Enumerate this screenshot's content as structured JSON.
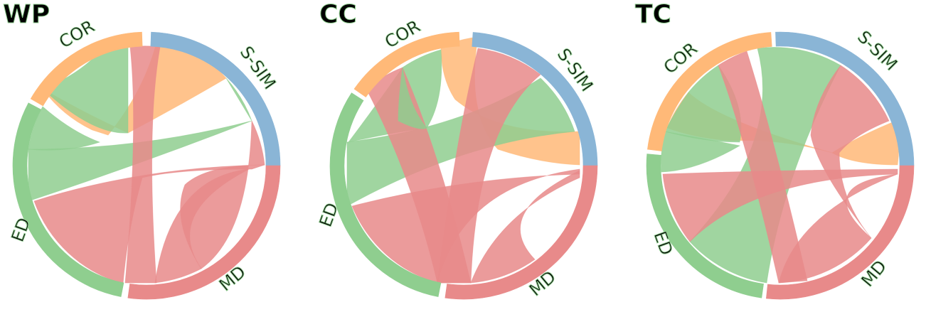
{
  "colors": {
    "S-SIM": "#8ab5d6",
    "MD": "#e88a8a",
    "ED": "#8fce8f",
    "COR": "#ffb978"
  },
  "chart_data": [
    {
      "type": "chord",
      "title": "WP",
      "groups": [
        {
          "name": "S-SIM",
          "label": "S-SIM",
          "start": 0,
          "end": 60,
          "color": "#8ab5d6"
        },
        {
          "name": "MD",
          "label": "MD",
          "start": 0,
          "end": 174,
          "color": "#e88a8a"
        },
        {
          "name": "ED",
          "label": "ED",
          "start": 176,
          "end": 280,
          "color": "#8fce8f"
        },
        {
          "name": "COR",
          "label": "COR",
          "start": 283,
          "end": 357,
          "color": "#ffb978"
        }
      ],
      "chords": [
        {
          "from": "S-SIM",
          "to": "MD",
          "color": "MD"
        },
        {
          "from": "S-SIM",
          "to": "ED",
          "color": "ED"
        },
        {
          "from": "S-SIM",
          "to": "COR",
          "color": "COR"
        },
        {
          "from": "MD",
          "to": "MD",
          "color": "MD"
        },
        {
          "from": "MD",
          "to": "ED",
          "color": "MD"
        },
        {
          "from": "MD",
          "to": "COR",
          "color": "MD"
        },
        {
          "from": "ED",
          "to": "COR",
          "color": "ED"
        },
        {
          "from": "ED",
          "to": "ED",
          "color": "ED"
        }
      ]
    },
    {
      "type": "chord",
      "title": "CC",
      "groups": [
        {
          "name": "S-SIM",
          "label": "S-SIM",
          "start": 0,
          "end": 60,
          "color": "#8ab5d6"
        },
        {
          "name": "MD",
          "label": "MD",
          "start": 0,
          "end": 174,
          "color": "#e88a8a"
        },
        {
          "name": "ED",
          "label": "ED",
          "start": 176,
          "end": 285,
          "color": "#8fce8f"
        },
        {
          "name": "COR",
          "label": "COR",
          "start": 288,
          "end": 357,
          "color": "#ffb978"
        }
      ],
      "chords": [
        {
          "from": "S-SIM",
          "to": "MD",
          "color": "MD"
        },
        {
          "from": "S-SIM",
          "to": "ED",
          "color": "ED"
        },
        {
          "from": "S-SIM",
          "to": "COR",
          "color": "COR"
        },
        {
          "from": "MD",
          "to": "MD",
          "color": "MD"
        },
        {
          "from": "MD",
          "to": "ED",
          "color": "MD"
        },
        {
          "from": "MD",
          "to": "COR",
          "color": "MD"
        },
        {
          "from": "ED",
          "to": "COR",
          "color": "ED"
        },
        {
          "from": "ED",
          "to": "ED",
          "color": "ED"
        }
      ]
    },
    {
      "type": "chord",
      "title": "TC",
      "groups": [
        {
          "name": "S-SIM",
          "label": "S-SIM",
          "start": 0,
          "end": 86,
          "color": "#8ab5d6"
        },
        {
          "name": "MD",
          "label": "MD",
          "start": 0,
          "end": 176,
          "color": "#e88a8a"
        },
        {
          "name": "ED",
          "label": "ED",
          "start": 178,
          "end": 265,
          "color": "#8fce8f"
        },
        {
          "name": "COR",
          "label": "COR",
          "start": 268,
          "end": 357,
          "color": "#ffb978"
        }
      ],
      "chords": [
        {
          "from": "S-SIM",
          "to": "MD",
          "color": "MD"
        },
        {
          "from": "S-SIM",
          "to": "ED",
          "color": "ED"
        },
        {
          "from": "S-SIM",
          "to": "COR",
          "color": "COR"
        },
        {
          "from": "MD",
          "to": "MD",
          "color": "MD"
        },
        {
          "from": "MD",
          "to": "ED",
          "color": "MD"
        },
        {
          "from": "MD",
          "to": "COR",
          "color": "MD"
        },
        {
          "from": "ED",
          "to": "COR",
          "color": "ED"
        },
        {
          "from": "ED",
          "to": "ED",
          "color": "ED"
        }
      ]
    }
  ]
}
